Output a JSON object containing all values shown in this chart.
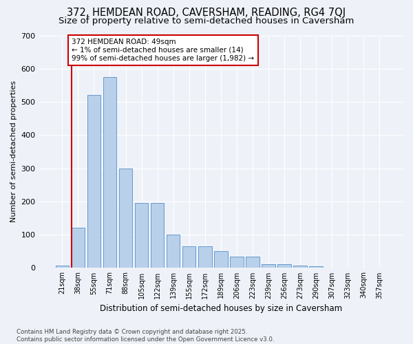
{
  "title1": "372, HEMDEAN ROAD, CAVERSHAM, READING, RG4 7QJ",
  "title2": "Size of property relative to semi-detached houses in Caversham",
  "xlabel": "Distribution of semi-detached houses by size in Caversham",
  "ylabel": "Number of semi-detached properties",
  "categories": [
    "21sqm",
    "38sqm",
    "55sqm",
    "71sqm",
    "88sqm",
    "105sqm",
    "122sqm",
    "139sqm",
    "155sqm",
    "172sqm",
    "189sqm",
    "206sqm",
    "223sqm",
    "239sqm",
    "256sqm",
    "273sqm",
    "290sqm",
    "307sqm",
    "323sqm",
    "340sqm",
    "357sqm"
  ],
  "values": [
    8,
    120,
    520,
    575,
    300,
    195,
    195,
    100,
    65,
    65,
    50,
    35,
    35,
    12,
    12,
    8,
    5,
    0,
    0,
    0,
    0
  ],
  "bar_color": "#b8d0ea",
  "bar_edge_color": "#6699cc",
  "background_color": "#eef2f8",
  "grid_color": "#ffffff",
  "vline_x": 0.575,
  "vline_color": "#cc0000",
  "annotation_text": "372 HEMDEAN ROAD: 49sqm\n← 1% of semi-detached houses are smaller (14)\n99% of semi-detached houses are larger (1,982) →",
  "annotation_box_color": "#ffffff",
  "annotation_box_edge": "#cc0000",
  "footnote": "Contains HM Land Registry data © Crown copyright and database right 2025.\nContains public sector information licensed under the Open Government Licence v3.0.",
  "ylim": [
    0,
    700
  ],
  "yticks": [
    0,
    100,
    200,
    300,
    400,
    500,
    600,
    700
  ],
  "title_fontsize": 10.5,
  "subtitle_fontsize": 9.5
}
